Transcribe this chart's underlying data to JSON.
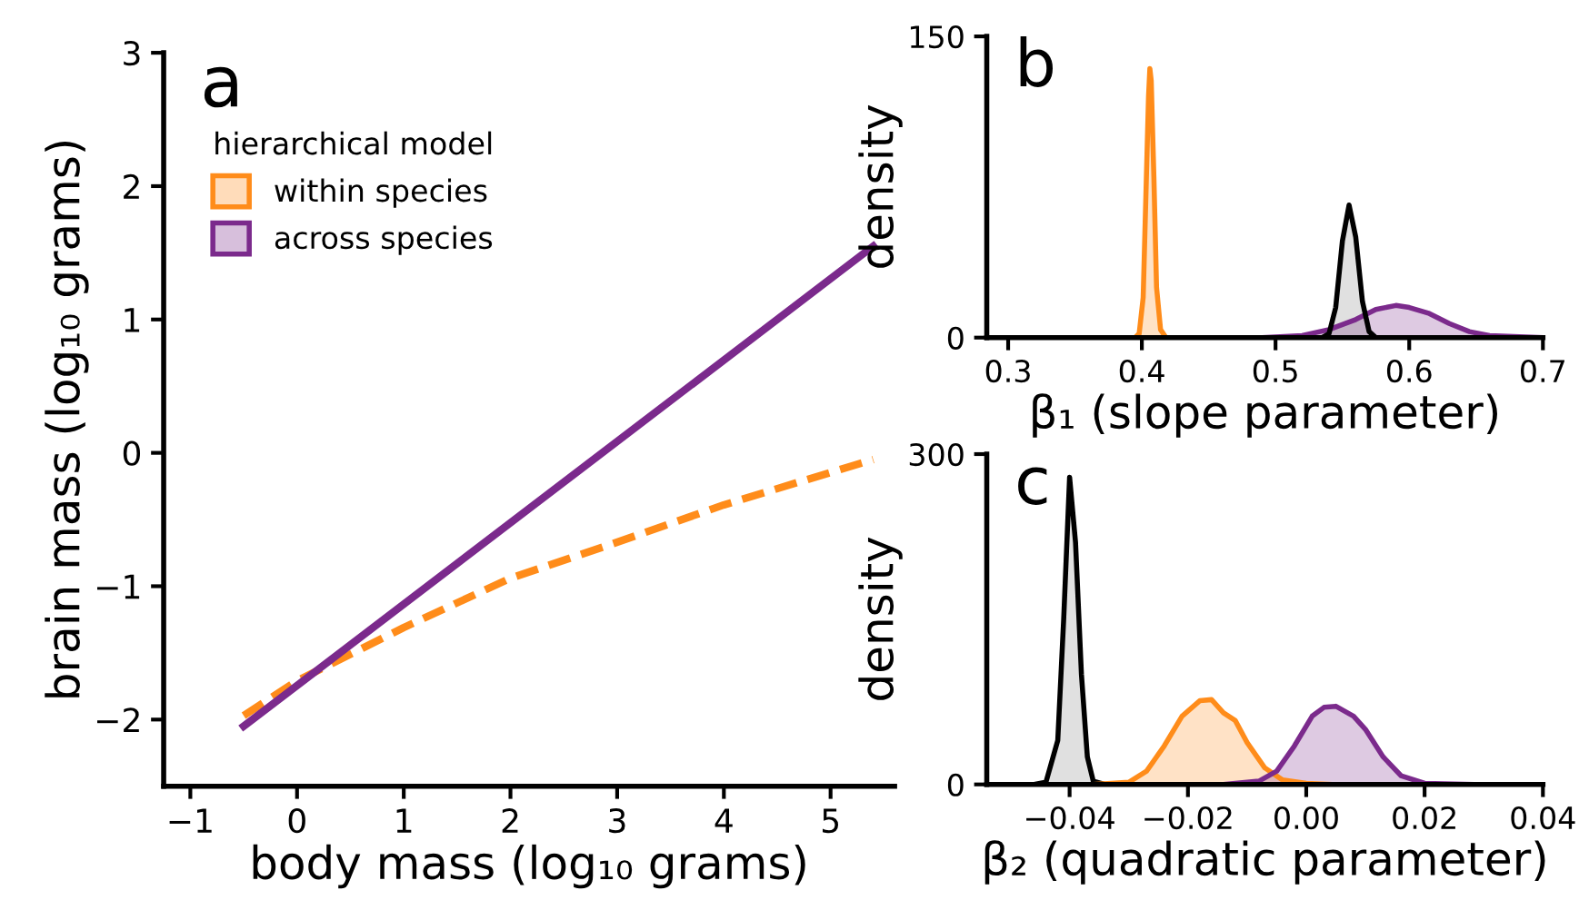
{
  "chart_data": [
    {
      "type": "line",
      "xlabel": "body mass (log₁₀ grams)",
      "ylabel": "brain mass (log₁₀ grams)",
      "legend_title": "hierarchical model",
      "legend": "top left",
      "grid": false,
      "annotations": [
        "a"
      ],
      "xlim": [
        -1.25,
        5.6
      ],
      "ylim": [
        -2.5,
        3
      ],
      "xticks": [
        {
          "value": -1,
          "label": "−1"
        },
        0,
        1,
        2,
        3,
        4,
        5
      ],
      "yticks": [
        {
          "value": -2,
          "label": "−2"
        },
        {
          "value": -1,
          "label": "−1"
        },
        0,
        1,
        2,
        3
      ],
      "series": [
        {
          "name": "within species",
          "color": "#ff8c1a",
          "line_style": "dashed",
          "x": [
            -0.5,
            0,
            1,
            2,
            3,
            4,
            5.4
          ],
          "values": [
            -1.97,
            -1.71,
            -1.31,
            -0.94,
            -0.67,
            -0.39,
            -0.05
          ]
        },
        {
          "name": "across species",
          "color": "#7b2a8c",
          "line_style": "solid",
          "x": [
            -0.5,
            5.4
          ],
          "values": [
            -2.05,
            1.55
          ]
        }
      ]
    },
    {
      "type": "area",
      "xlabel": "β₁ (slope parameter)",
      "ylabel": "density",
      "grid": false,
      "annotations": [
        "b"
      ],
      "xlim": [
        0.284,
        0.7
      ],
      "ylim": [
        0,
        150
      ],
      "xticks": [
        0.3,
        0.4,
        0.5,
        0.6,
        0.7
      ],
      "yticks": [
        0,
        150
      ],
      "series": [
        {
          "color": "#ff8c1a",
          "x": [
            0.395,
            0.398,
            0.401,
            0.403,
            0.405,
            0.406,
            0.407,
            0.409,
            0.411,
            0.414,
            0.418
          ],
          "values": [
            0,
            2,
            20,
            70,
            120,
            134,
            128,
            80,
            25,
            4,
            0
          ]
        },
        {
          "color": "#7b2a8c",
          "x": [
            0.49,
            0.52,
            0.54,
            0.56,
            0.575,
            0.59,
            0.6,
            0.615,
            0.63,
            0.645,
            0.66,
            0.7
          ],
          "values": [
            0,
            1,
            4,
            9,
            14,
            16,
            15,
            12,
            7,
            3,
            1,
            0
          ]
        },
        {
          "color": "#000000",
          "x": [
            0.535,
            0.54,
            0.545,
            0.55,
            0.555,
            0.56,
            0.565,
            0.57,
            0.575
          ],
          "values": [
            0,
            2,
            15,
            48,
            66,
            50,
            18,
            3,
            0
          ]
        }
      ]
    },
    {
      "type": "area",
      "xlabel": "β₂ (quadratic parameter)",
      "ylabel": "density",
      "grid": false,
      "annotations": [
        "c"
      ],
      "xlim": [
        -0.054,
        0.04
      ],
      "ylim": [
        0,
        300
      ],
      "xticks": [
        {
          "value": -0.04,
          "label": "−0.04"
        },
        {
          "value": -0.02,
          "label": "−0.02"
        },
        {
          "value": 0,
          "label": "0.00"
        },
        {
          "value": 0.02,
          "label": "0.02"
        },
        {
          "value": 0.04,
          "label": "0.04"
        }
      ],
      "yticks": [
        0,
        300
      ],
      "series": [
        {
          "color": "#000000",
          "x": [
            -0.046,
            -0.044,
            -0.042,
            -0.041,
            -0.04,
            -0.039,
            -0.038,
            -0.037,
            -0.036,
            -0.034
          ],
          "values": [
            0,
            2,
            40,
            150,
            279,
            220,
            100,
            25,
            3,
            0
          ]
        },
        {
          "color": "#ff8c1a",
          "x": [
            -0.036,
            -0.03,
            -0.027,
            -0.024,
            -0.021,
            -0.018,
            -0.016,
            -0.014,
            -0.012,
            -0.01,
            -0.007,
            -0.004,
            0.0,
            0.004
          ],
          "values": [
            0,
            2,
            12,
            35,
            62,
            76,
            77,
            65,
            58,
            38,
            15,
            4,
            1,
            0
          ]
        },
        {
          "color": "#7b2a8c",
          "x": [
            -0.014,
            -0.008,
            -0.005,
            -0.002,
            0.001,
            0.003,
            0.005,
            0.008,
            0.01,
            0.013,
            0.016,
            0.02,
            0.028
          ],
          "values": [
            0,
            3,
            12,
            35,
            62,
            70,
            71,
            62,
            50,
            25,
            8,
            1,
            0
          ]
        }
      ]
    }
  ]
}
